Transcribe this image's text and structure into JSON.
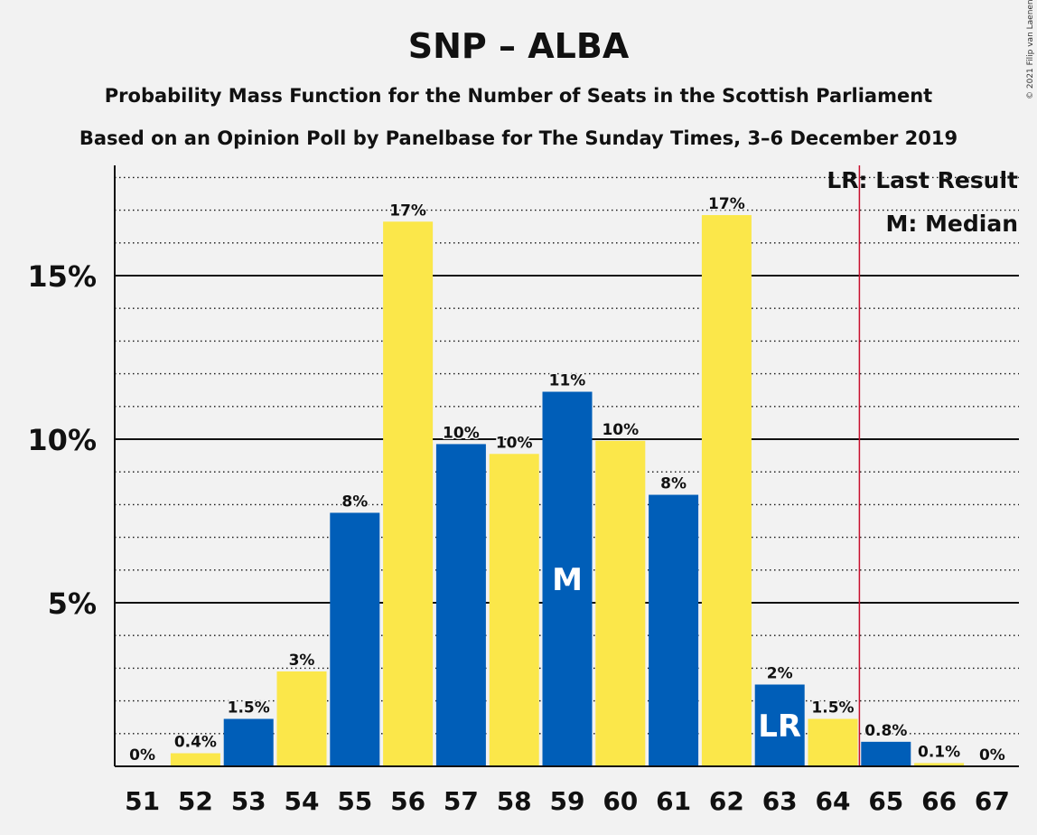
{
  "chart_data": {
    "type": "bar",
    "title": "SNP – ALBA",
    "subtitle_lines": [
      "Probability Mass Function for the Number of Seats in the Scottish Parliament",
      "Based on an Opinion Poll by Panelbase for The Sunday Times, 3–6 December 2019"
    ],
    "copyright": "© 2021 Filip van Laenen",
    "categories": [
      "51",
      "52",
      "53",
      "54",
      "55",
      "56",
      "57",
      "58",
      "59",
      "60",
      "61",
      "62",
      "63",
      "64",
      "65",
      "66",
      "67"
    ],
    "values": [
      0.0,
      0.4,
      1.45,
      2.9,
      7.75,
      16.65,
      9.85,
      9.55,
      11.45,
      9.95,
      8.3,
      16.85,
      2.5,
      1.45,
      0.75,
      0.1,
      0.0
    ],
    "data_labels": [
      "0%",
      "0.4%",
      "1.5%",
      "3%",
      "8%",
      "17%",
      "10%",
      "10%",
      "11%",
      "10%",
      "8%",
      "17%",
      "2%",
      "1.5%",
      "0.8%",
      "0.1%",
      "0%"
    ],
    "bar_colors": [
      "#005EB8",
      "#FBE74A",
      "#005EB8",
      "#FBE74A",
      "#005EB8",
      "#FBE74A",
      "#005EB8",
      "#FBE74A",
      "#005EB8",
      "#FBE74A",
      "#005EB8",
      "#FBE74A",
      "#005EB8",
      "#FBE74A",
      "#005EB8",
      "#FBE74A",
      "#005EB8"
    ],
    "ylim": [
      0,
      18
    ],
    "yticks": [
      5,
      10,
      15
    ],
    "ytick_labels": [
      "5%",
      "10%",
      "15%"
    ],
    "minor_grid_step": 1,
    "median_category": "59",
    "median_marker": "M",
    "last_result_category": "63",
    "last_result_marker": "LR",
    "last_result_line_after": "64",
    "legend": [
      "LR: Last Result",
      "M: Median"
    ],
    "colors": {
      "blue": "#005EB8",
      "yellow": "#FBE74A",
      "last_result_line": "#C8102E"
    }
  }
}
